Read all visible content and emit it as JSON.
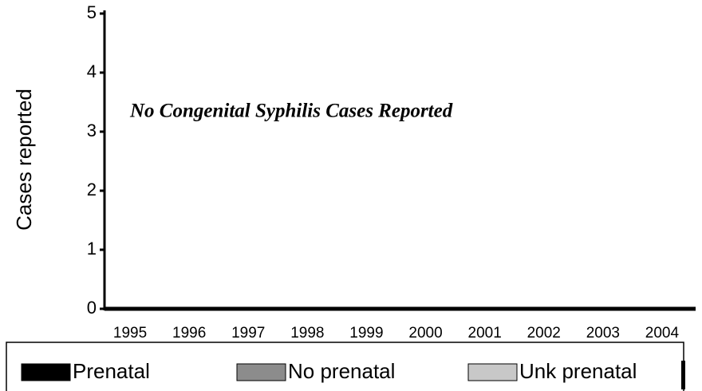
{
  "chart_data": {
    "type": "stacked_bar",
    "annotation": "No Congenital Syphilis Cases Reported",
    "y_label": "Cases reported",
    "categories": [
      "1995",
      "1996",
      "1997",
      "1998",
      "1999",
      "2000",
      "2001",
      "2002",
      "2003",
      "2004"
    ],
    "series": [
      {
        "name": "Prenatal",
        "color": "#000000",
        "values": [
          0,
          0,
          0,
          0,
          0,
          0,
          0,
          0,
          0,
          0
        ]
      },
      {
        "name": "No prenatal",
        "color": "#8c8c8c",
        "values": [
          0,
          0,
          0,
          0,
          0,
          0,
          0,
          0,
          0,
          0
        ]
      },
      {
        "name": "Unk prenatal",
        "color": "#c8c8c8",
        "values": [
          0,
          0,
          0,
          0,
          0,
          0,
          0,
          0,
          0,
          0
        ]
      }
    ],
    "ylim": [
      0,
      5
    ],
    "yticks": [
      0,
      1,
      2,
      3,
      4,
      5
    ]
  }
}
